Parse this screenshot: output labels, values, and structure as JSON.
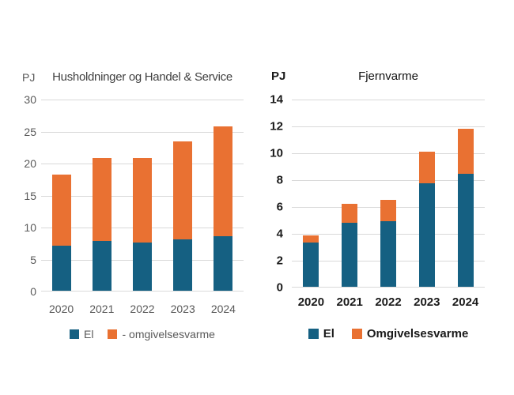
{
  "page": {
    "background_color": "#FFFFFF",
    "gridline_color": "#D9D9D9"
  },
  "chart_data": [
    {
      "type": "bar",
      "stacked": true,
      "title": "Husholdninger og Handel & Service",
      "unit_label": "PJ",
      "categories": [
        "2020",
        "2021",
        "2022",
        "2023",
        "2024"
      ],
      "series": [
        {
          "name": "El",
          "color": "#156082",
          "values": [
            7.0,
            7.8,
            7.5,
            8.0,
            8.5
          ]
        },
        {
          "name": "- omgivelsesvarme",
          "color": "#E97132",
          "values": [
            11.1,
            12.9,
            13.2,
            15.3,
            17.2
          ]
        }
      ],
      "stack_totals": [
        18.1,
        20.7,
        20.7,
        23.3,
        25.7
      ],
      "ylim": [
        0,
        30
      ],
      "yticks": [
        0,
        5,
        10,
        15,
        20,
        25,
        30
      ],
      "grid": true,
      "legend_position": "bottom",
      "text_color": "#595959",
      "title_color": "#404040"
    },
    {
      "type": "bar",
      "stacked": true,
      "title": "Fjernvarme",
      "unit_label": "PJ",
      "categories": [
        "2020",
        "2021",
        "2022",
        "2023",
        "2024"
      ],
      "series": [
        {
          "name": "El",
          "color": "#156082",
          "values": [
            3.3,
            4.75,
            4.9,
            7.7,
            8.4
          ]
        },
        {
          "name": "Omgivelsesvarme",
          "color": "#E97132",
          "values": [
            0.55,
            1.45,
            1.6,
            2.35,
            3.35
          ]
        }
      ],
      "stack_totals": [
        3.85,
        6.2,
        6.5,
        10.05,
        11.75
      ],
      "ylim": [
        0,
        14
      ],
      "yticks": [
        0,
        2,
        4,
        6,
        8,
        10,
        12,
        14
      ],
      "grid": true,
      "legend_position": "bottom",
      "text_color": "#1a1a1a",
      "title_color": "#111111"
    }
  ]
}
